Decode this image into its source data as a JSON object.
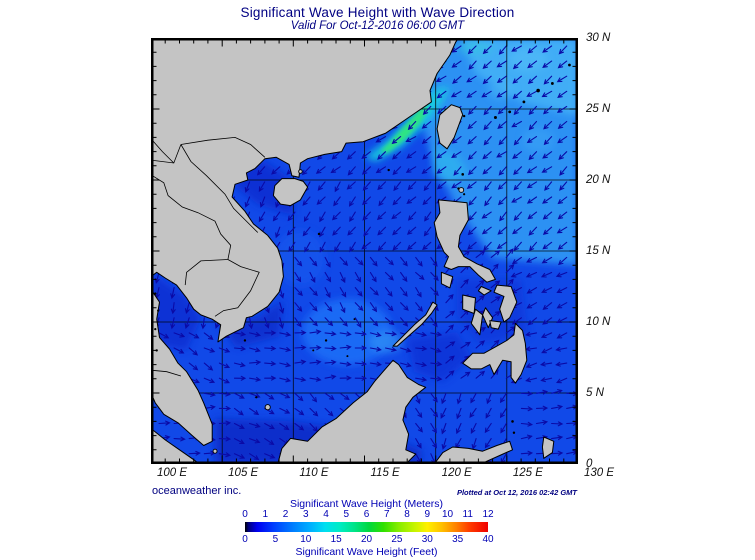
{
  "header": {
    "title": "Significant Wave Height with Wave Direction",
    "subtitle": "Valid For Oct-12-2016 06:00 GMT"
  },
  "map": {
    "lon_labels": [
      "100 E",
      "105 E",
      "110 E",
      "115 E",
      "120 E",
      "125 E",
      "130 E"
    ],
    "lat_labels": [
      "30 N",
      "25 N",
      "20 N",
      "15 N",
      "10 N",
      "5 N",
      "0"
    ],
    "credit_left": "oceanweather inc.",
    "credit_right": "Plotted at Oct 12, 2016 02:42 GMT",
    "wave_direction_grid": [
      [
        225,
        225,
        228,
        225,
        230,
        232
      ],
      [
        228,
        226,
        230,
        232,
        230,
        230
      ],
      [
        215,
        210,
        218,
        224,
        228,
        230
      ],
      [
        190,
        165,
        145,
        140,
        45,
        238
      ],
      [
        120,
        95,
        90,
        100,
        50,
        252
      ],
      [
        90,
        118,
        132,
        152,
        205,
        85
      ]
    ],
    "colors": {
      "ocean_base": "#1149e8",
      "ocean_mid_light": "#1e6ef7",
      "ocean_ne_light": "#2d95f4",
      "ocean_ne_lighter": "#47b5f7",
      "strait_cyan": "#17cfe0",
      "strait_green": "#33e878",
      "coastal_dark": "#0d2ed2",
      "land": "#c4c4c4",
      "coastline": "#000000",
      "arrow": "#0a0aa6",
      "grid_line": "#000000"
    }
  },
  "colorbar": {
    "meters_label": "Significant Wave Height (Meters)",
    "meters_ticks": [
      "0",
      "1",
      "2",
      "3",
      "4",
      "5",
      "6",
      "7",
      "8",
      "9",
      "10",
      "11",
      "12"
    ],
    "feet_label": "Significant Wave Height (Feet)",
    "feet_ticks": [
      "0",
      "5",
      "10",
      "15",
      "20",
      "25",
      "30",
      "35",
      "40"
    ],
    "gradient": [
      [
        0,
        "#000000"
      ],
      [
        1.5,
        "#000080"
      ],
      [
        5,
        "#0000f0"
      ],
      [
        12,
        "#0040ff"
      ],
      [
        20,
        "#0080ff"
      ],
      [
        27,
        "#00b0ff"
      ],
      [
        33,
        "#00dff0"
      ],
      [
        39,
        "#00ecc4"
      ],
      [
        45,
        "#00e488"
      ],
      [
        51,
        "#00d840"
      ],
      [
        57,
        "#30e000"
      ],
      [
        63,
        "#84ec00"
      ],
      [
        70,
        "#c8f400"
      ],
      [
        75,
        "#fff000"
      ],
      [
        81,
        "#ffc000"
      ],
      [
        87,
        "#ff8000"
      ],
      [
        92,
        "#ff4000"
      ],
      [
        100,
        "#f00000"
      ]
    ]
  }
}
